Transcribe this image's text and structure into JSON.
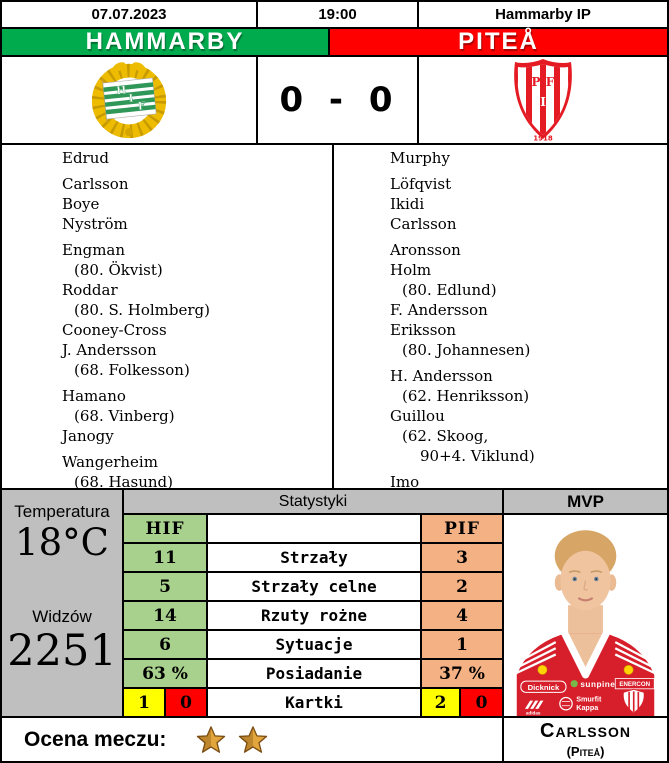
{
  "header": {
    "date": "07.07.2023",
    "time": "19:00",
    "venue": "Hammarby IP"
  },
  "teams": {
    "home": {
      "name": "HAMMARBY",
      "abbr": "HIF",
      "bar_color": "#00ab4e",
      "crest": {
        "l1": "H",
        "l2": "I",
        "l3": "F"
      }
    },
    "away": {
      "name": "PITEÅ",
      "abbr": "PIF",
      "bar_color": "#fe0000",
      "crest": {
        "l1": "P",
        "l2": "I",
        "l3": "F",
        "year": "1918"
      }
    }
  },
  "score": "0 - 0",
  "lineups": {
    "home": [
      {
        "text": "Edrud",
        "indent": 0
      },
      {
        "text": "Carlsson",
        "indent": 0,
        "gap": true
      },
      {
        "text": "Boye",
        "indent": 0
      },
      {
        "text": "Nyström",
        "indent": 0
      },
      {
        "text": "Engman",
        "indent": 0,
        "gap": true
      },
      {
        "text": "(80. Ökvist)",
        "indent": 1
      },
      {
        "text": "Roddar",
        "indent": 0
      },
      {
        "text": "(80. S. Holmberg)",
        "indent": 1
      },
      {
        "text": "Cooney-Cross",
        "indent": 0
      },
      {
        "text": "J. Andersson",
        "indent": 0
      },
      {
        "text": "(68. Folkesson)",
        "indent": 1
      },
      {
        "text": "Hamano",
        "indent": 0,
        "gap": true
      },
      {
        "text": "(68. Vinberg)",
        "indent": 1
      },
      {
        "text": "Janogy",
        "indent": 0
      },
      {
        "text": "Wangerheim",
        "indent": 0,
        "gap": true
      },
      {
        "text": "(68. Hasund)",
        "indent": 1
      }
    ],
    "away": [
      {
        "text": "Murphy",
        "indent": 0
      },
      {
        "text": "Löfqvist",
        "indent": 0,
        "gap": true
      },
      {
        "text": "Ikidi",
        "indent": 0
      },
      {
        "text": "Carlsson",
        "indent": 0
      },
      {
        "text": "Aronsson",
        "indent": 0,
        "gap": true
      },
      {
        "text": "Holm",
        "indent": 0
      },
      {
        "text": "(80. Edlund)",
        "indent": 1
      },
      {
        "text": "F. Andersson",
        "indent": 0
      },
      {
        "text": "Eriksson",
        "indent": 0
      },
      {
        "text": "(80. Johannesen)",
        "indent": 1
      },
      {
        "text": "H. Andersson",
        "indent": 0,
        "gap": true
      },
      {
        "text": "(62. Henriksson)",
        "indent": 1
      },
      {
        "text": "Guillou",
        "indent": 0
      },
      {
        "text": "(62. Skoog,",
        "indent": 1
      },
      {
        "text": "90+4. Viklund)",
        "indent": 2
      },
      {
        "text": "Imo",
        "indent": 0,
        "gap": true
      }
    ]
  },
  "conditions": {
    "temperature_label": "Temperatura",
    "temperature": "18°C",
    "attendance_label": "Widzów",
    "attendance": "2251"
  },
  "stats": {
    "title": "Statystyki",
    "home_abbr": "HIF",
    "away_abbr": "PIF",
    "home_color": "#a9d18e",
    "away_color": "#f4b183",
    "rows": [
      {
        "label": "Strzały",
        "home": "11",
        "away": "3"
      },
      {
        "label": "Strzały celne",
        "home": "5",
        "away": "2"
      },
      {
        "label": "Rzuty rożne",
        "home": "14",
        "away": "4"
      },
      {
        "label": "Sytuacje",
        "home": "6",
        "away": "1"
      },
      {
        "label": "Posiadanie",
        "home": "63 %",
        "away": "37 %"
      }
    ],
    "cards": {
      "label": "Kartki",
      "home_yellow": "1",
      "home_red": "0",
      "away_yellow": "2",
      "away_red": "0",
      "yellow_color": "#ffff00",
      "red_color": "#ff0000"
    }
  },
  "mvp": {
    "title": "MVP",
    "player": "Carlsson",
    "team": "(Piteå)",
    "jersey": {
      "sponsor_left": "Dicknick",
      "sponsor_center": "sunpine",
      "sponsor_right": "ENERCON",
      "sponsor_bottom_line1": "Smurfit",
      "sponsor_bottom_line2": "Kappa",
      "brand": "adidas"
    }
  },
  "rating": {
    "label": "Ocena meczu:",
    "stars": 2
  }
}
